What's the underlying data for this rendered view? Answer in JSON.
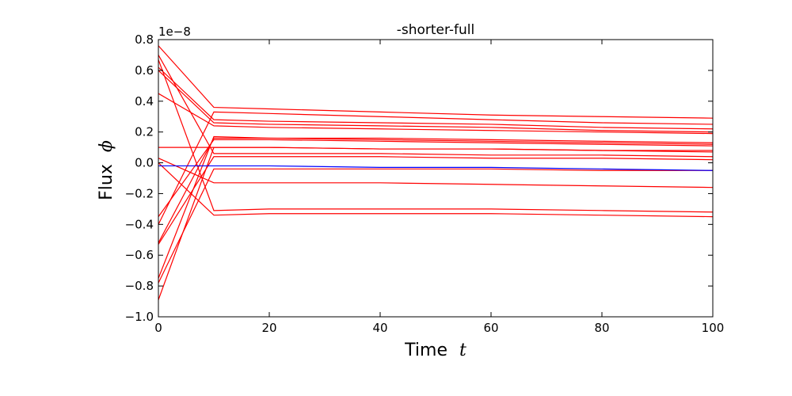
{
  "chart_data": {
    "type": "line",
    "title": "-shorter-full",
    "xlabel": "Time",
    "xlabel_symbol": "t",
    "ylabel": "Flux",
    "ylabel_symbol": "ϕ",
    "y_offset_label": "1e−8",
    "xlim": [
      0,
      100
    ],
    "ylim": [
      -1.0,
      0.8
    ],
    "x_ticks": [
      0,
      20,
      40,
      60,
      80,
      100
    ],
    "x_tick_labels": [
      "0",
      "20",
      "40",
      "60",
      "80",
      "100"
    ],
    "y_ticks": [
      0.8,
      0.6,
      0.4,
      0.2,
      0.0,
      -0.2,
      -0.4,
      -0.6,
      -0.8,
      -1.0
    ],
    "y_tick_labels": [
      "0.8",
      "0.6",
      "0.4",
      "0.2",
      "0.0",
      "−0.2",
      "−0.4",
      "−0.6",
      "−0.8",
      "−1.0"
    ],
    "grid": false,
    "legend": "none",
    "colors": {
      "red": "#ff0000",
      "blue": "#0000ff"
    },
    "x": [
      0,
      10,
      20,
      40,
      60,
      80,
      100
    ],
    "series": [
      {
        "color": "#ff0000",
        "values": [
          0.76,
          0.36,
          0.35,
          0.33,
          0.31,
          0.3,
          0.29
        ]
      },
      {
        "color": "#ff0000",
        "values": [
          0.7,
          0.06,
          0.06,
          0.06,
          0.05,
          0.05,
          0.04
        ]
      },
      {
        "color": "#ff0000",
        "values": [
          0.67,
          -0.31,
          -0.3,
          -0.3,
          -0.3,
          -0.31,
          -0.32
        ]
      },
      {
        "color": "#ff0000",
        "values": [
          0.62,
          0.28,
          0.27,
          0.26,
          0.25,
          0.23,
          0.22
        ]
      },
      {
        "color": "#ff0000",
        "values": [
          0.6,
          0.26,
          0.25,
          0.24,
          0.23,
          0.21,
          0.2
        ]
      },
      {
        "color": "#ff0000",
        "values": [
          0.45,
          0.24,
          0.23,
          0.22,
          0.21,
          0.2,
          0.19
        ]
      },
      {
        "color": "#ff0000",
        "values": [
          0.1,
          0.1,
          0.1,
          0.09,
          0.09,
          0.08,
          0.08
        ]
      },
      {
        "color": "#ff0000",
        "values": [
          0.03,
          -0.13,
          -0.13,
          -0.13,
          -0.14,
          -0.15,
          -0.16
        ]
      },
      {
        "color": "#ff0000",
        "values": [
          0.0,
          -0.34,
          -0.33,
          -0.33,
          -0.33,
          -0.34,
          -0.35
        ]
      },
      {
        "color": "#ff0000",
        "values": [
          -0.35,
          0.15,
          0.15,
          0.14,
          0.13,
          0.12,
          0.11
        ]
      },
      {
        "color": "#ff0000",
        "values": [
          -0.4,
          0.33,
          0.32,
          0.3,
          0.28,
          0.26,
          0.25
        ]
      },
      {
        "color": "#ff0000",
        "values": [
          -0.52,
          0.16,
          0.16,
          0.15,
          0.14,
          0.13,
          0.12
        ]
      },
      {
        "color": "#ff0000",
        "values": [
          -0.53,
          0.04,
          0.04,
          0.04,
          0.03,
          0.03,
          0.02
        ]
      },
      {
        "color": "#ff0000",
        "values": [
          -0.75,
          0.17,
          0.16,
          0.16,
          0.15,
          0.14,
          0.13
        ]
      },
      {
        "color": "#ff0000",
        "values": [
          -0.78,
          -0.04,
          -0.04,
          -0.04,
          -0.04,
          -0.05,
          -0.05
        ]
      },
      {
        "color": "#ff0000",
        "values": [
          -0.89,
          0.1,
          0.1,
          0.09,
          0.09,
          0.08,
          0.07
        ]
      },
      {
        "color": "#0000ff",
        "values": [
          -0.02,
          -0.02,
          -0.02,
          -0.03,
          -0.03,
          -0.04,
          -0.05
        ]
      }
    ]
  }
}
